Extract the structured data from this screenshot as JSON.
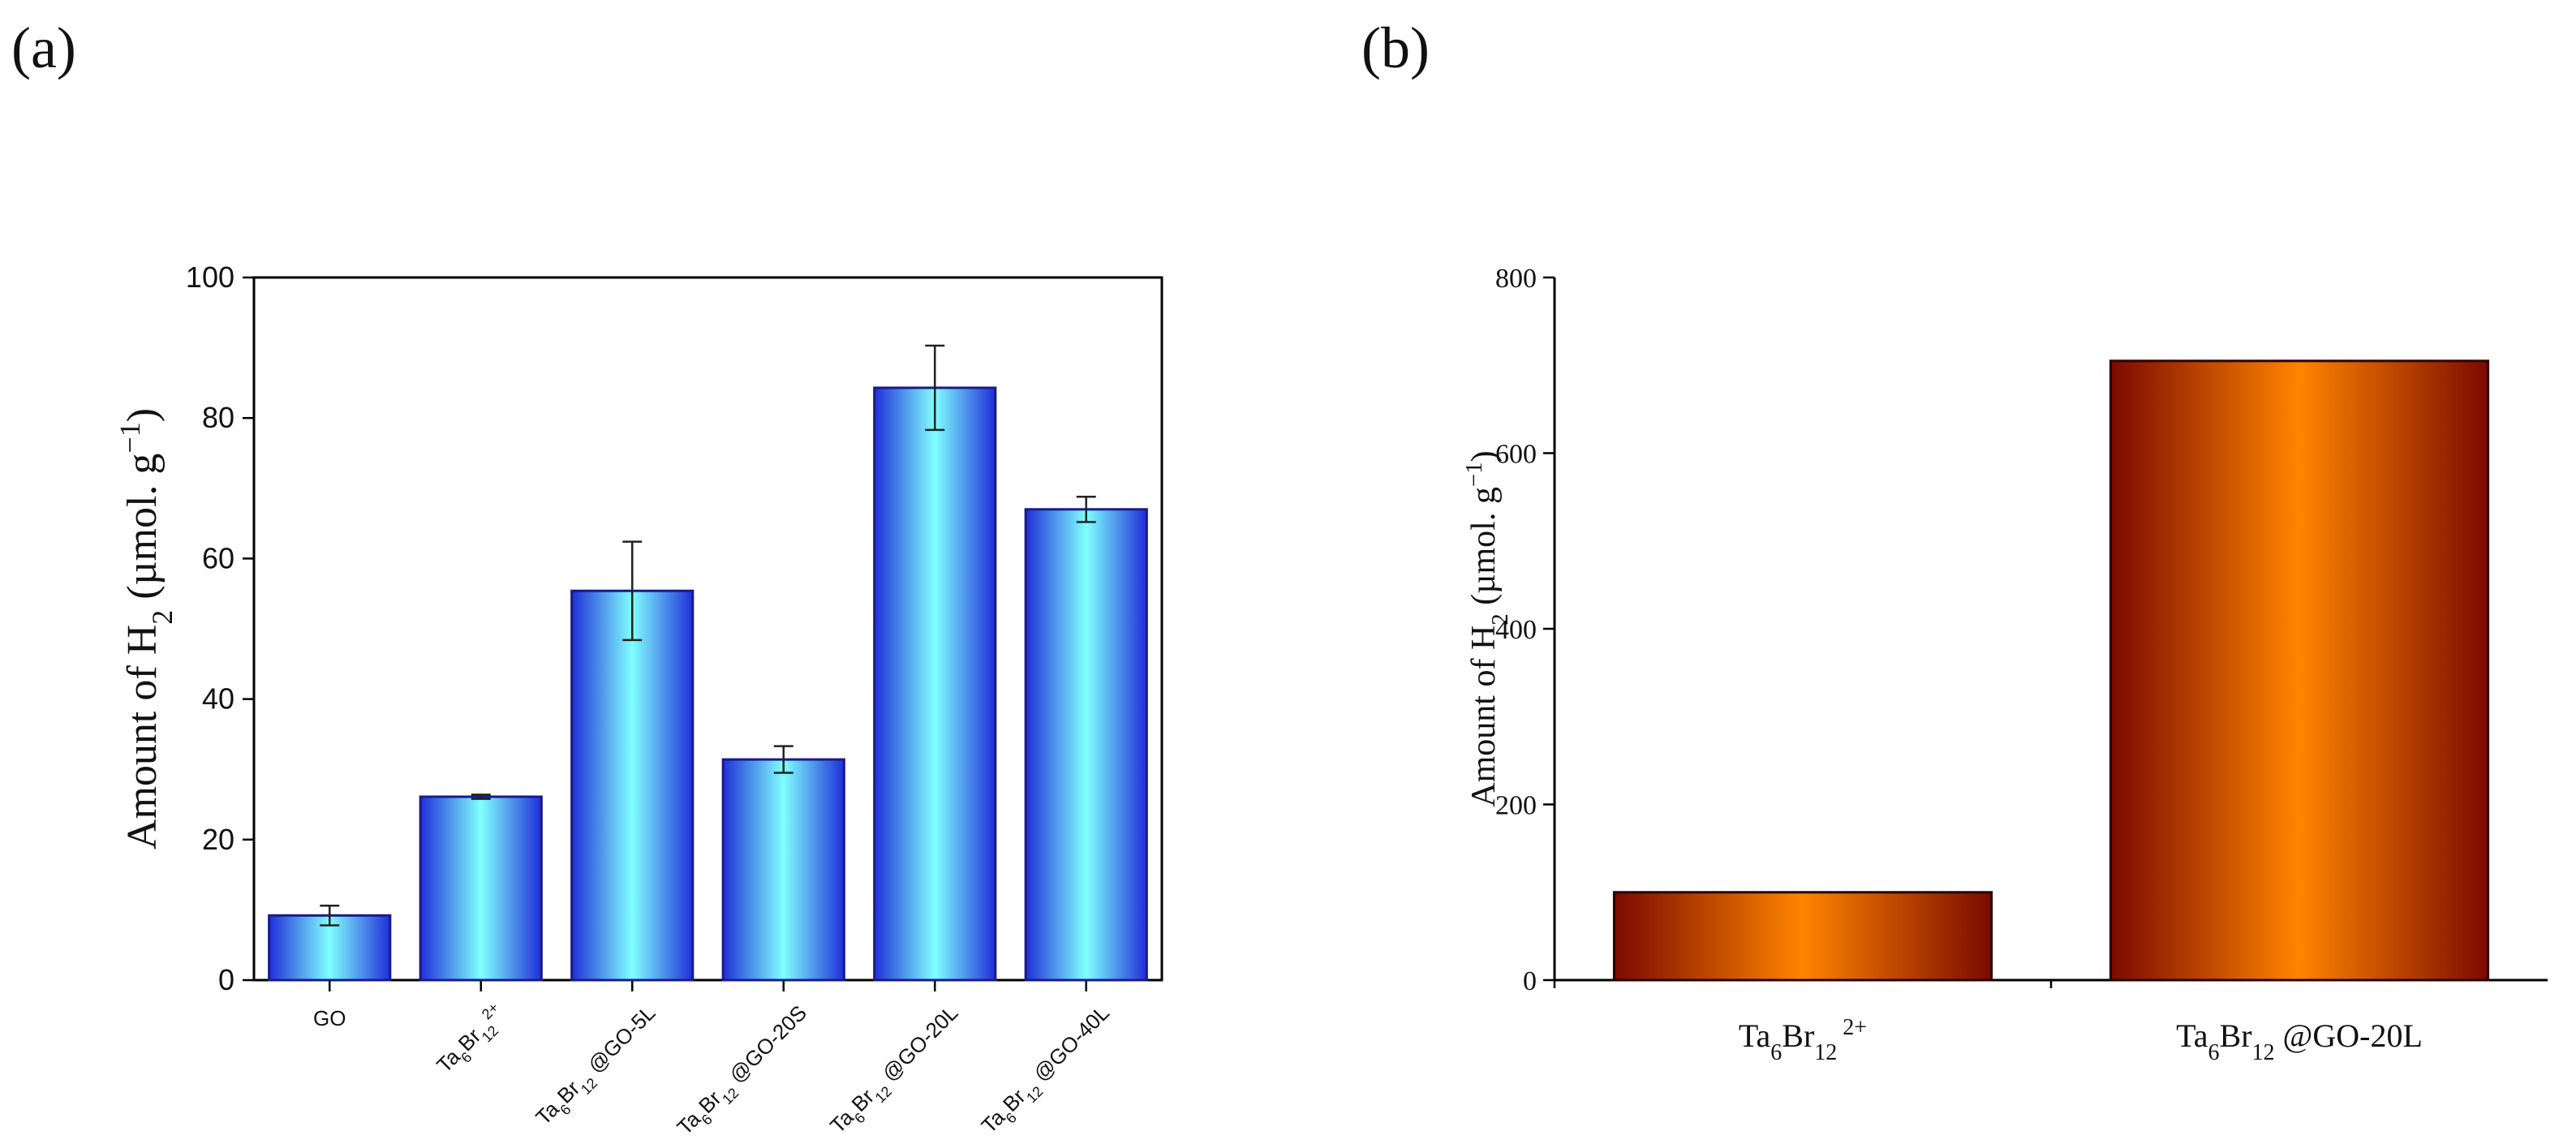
{
  "panels": {
    "a": "(a)",
    "b": "(b)"
  },
  "chart_data": [
    {
      "type": "bar",
      "panel": "(a)",
      "ylabel": {
        "prefix": "Amount of H",
        "sub": "2",
        "unit": " (µmol. g",
        "sup": "−1",
        "close": ")"
      },
      "ylim": [
        0,
        100
      ],
      "yticks": [
        0,
        20,
        40,
        60,
        80,
        100
      ],
      "categories": [
        {
          "parts": [
            [
              "GO",
              ""
            ]
          ]
        },
        {
          "parts": [
            [
              "Ta",
              ""
            ],
            [
              "6",
              "sub"
            ],
            [
              "Br",
              ""
            ],
            [
              "12",
              "sub"
            ],
            [
              "2+",
              "sup"
            ]
          ]
        },
        {
          "parts": [
            [
              "Ta",
              ""
            ],
            [
              "6",
              "sub"
            ],
            [
              "Br",
              ""
            ],
            [
              "12",
              "sub"
            ],
            [
              " @GO-5L",
              ""
            ]
          ]
        },
        {
          "parts": [
            [
              "Ta",
              ""
            ],
            [
              "6",
              "sub"
            ],
            [
              "Br",
              ""
            ],
            [
              "12",
              "sub"
            ],
            [
              " @GO-20S",
              ""
            ]
          ]
        },
        {
          "parts": [
            [
              "Ta",
              ""
            ],
            [
              "6",
              "sub"
            ],
            [
              "Br",
              ""
            ],
            [
              "12",
              "sub"
            ],
            [
              " @GO-20L",
              ""
            ]
          ]
        },
        {
          "parts": [
            [
              "Ta",
              ""
            ],
            [
              "6",
              "sub"
            ],
            [
              "Br",
              ""
            ],
            [
              "12",
              "sub"
            ],
            [
              " @GO-40L",
              ""
            ]
          ]
        }
      ],
      "values": [
        9.2,
        26.1,
        55.4,
        31.4,
        84.3,
        67.0
      ],
      "errors": [
        1.4,
        0.3,
        7.0,
        1.9,
        6.0,
        1.8
      ],
      "colors": {
        "edge": "#1f2fd8",
        "center": "#80ffff"
      }
    },
    {
      "type": "bar",
      "panel": "(b)",
      "ylabel": {
        "prefix": "Amount of H",
        "sub": "2",
        "unit": " (µmol. g",
        "sup": "−1",
        "close": ")"
      },
      "ylim": [
        0,
        800
      ],
      "yticks": [
        0,
        200,
        400,
        600,
        800
      ],
      "categories": [
        {
          "parts": [
            [
              "Ta",
              ""
            ],
            [
              "6",
              "sub"
            ],
            [
              "Br",
              ""
            ],
            [
              "12",
              "sub"
            ],
            [
              " 2+",
              "sup"
            ]
          ]
        },
        {
          "parts": [
            [
              "Ta",
              ""
            ],
            [
              "6",
              "sub"
            ],
            [
              "Br",
              ""
            ],
            [
              "12",
              "sub"
            ],
            [
              " @GO-20L",
              ""
            ]
          ]
        }
      ],
      "values": [
        100,
        705
      ],
      "colors": {
        "edge": "#7a0a00",
        "center": "#ff8400"
      }
    }
  ]
}
